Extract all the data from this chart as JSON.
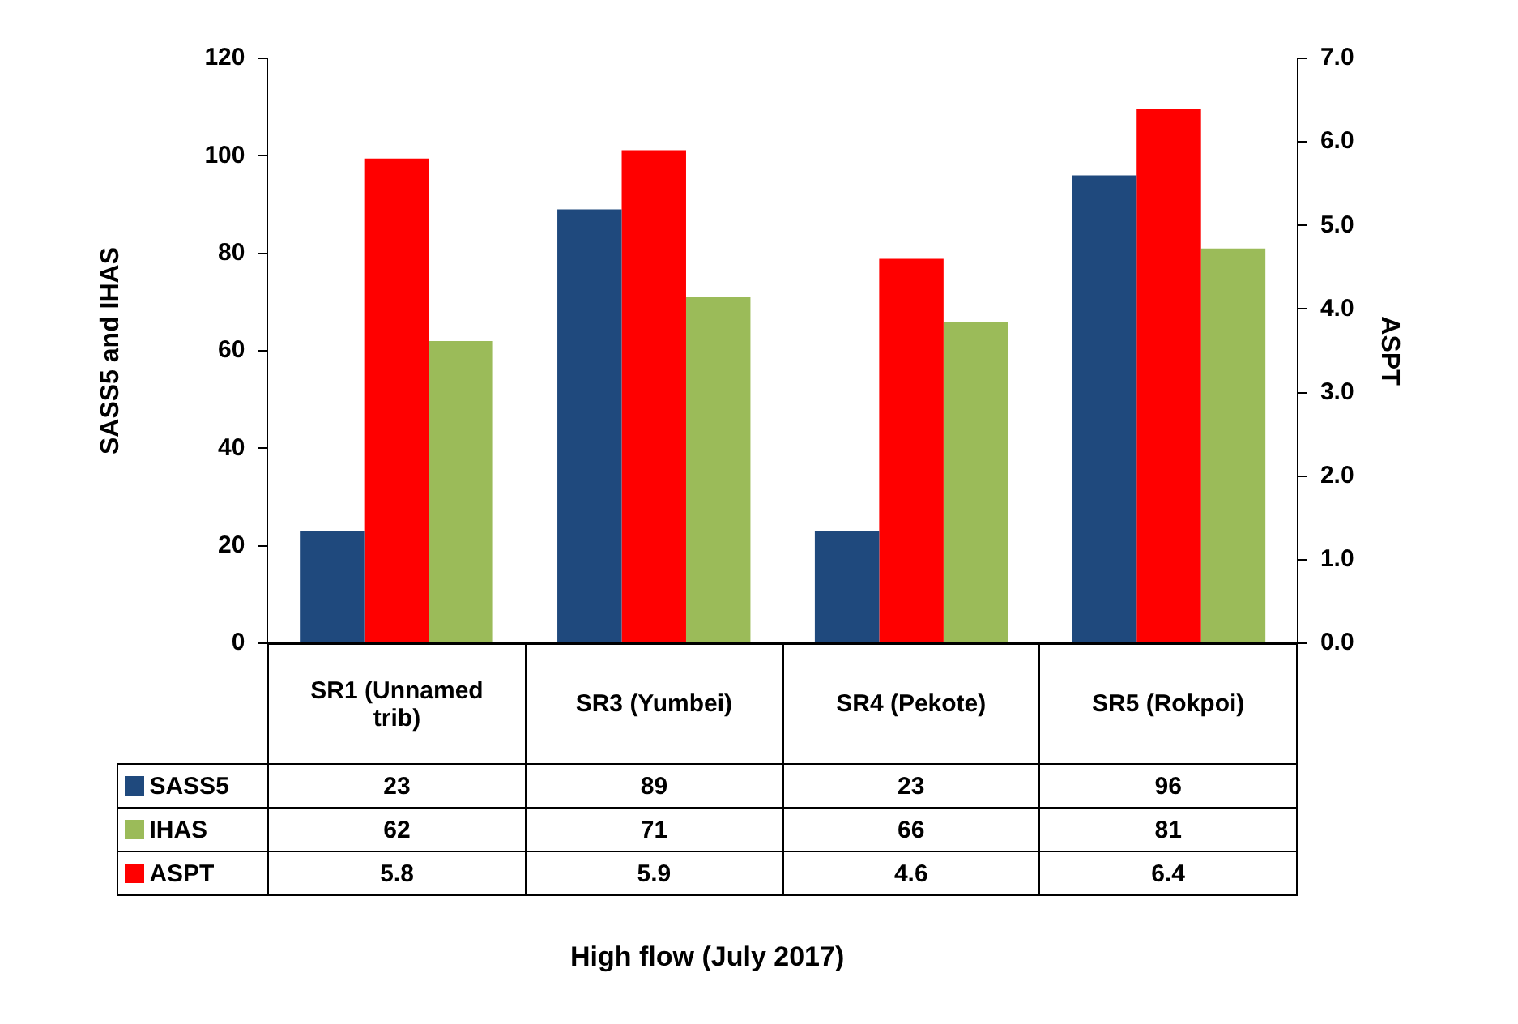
{
  "chart_data": {
    "type": "bar",
    "annotations": [
      "High flow (July 2017)"
    ],
    "ylabel": "SASS5 and IHAS",
    "y2label": "ASPT",
    "categories": [
      "SR1 (Unnamed trib)",
      "SR3 (Yumbei)",
      "SR4 (Pekote)",
      "SR5 (Rokpoi)"
    ],
    "series": [
      {
        "name": "SASS5",
        "color": "#1f497d",
        "values": [
          23,
          89,
          23,
          96
        ]
      },
      {
        "name": "IHAS",
        "color": "#9bbb59",
        "values": [
          62,
          71,
          66,
          81
        ]
      },
      {
        "name": "ASPT",
        "color": "#ff0000",
        "values": [
          5.8,
          5.9,
          4.6,
          6.4
        ],
        "axis": "y2"
      }
    ],
    "ylim": [
      0,
      120
    ],
    "yticks": [
      0,
      20,
      40,
      60,
      80,
      100,
      120
    ],
    "y2lim": [
      0,
      7
    ],
    "y2ticks": [
      {
        "value": 0,
        "label": "0.0"
      },
      {
        "value": 1,
        "label": "1.0"
      },
      {
        "value": 2,
        "label": "2.0"
      },
      {
        "value": 3,
        "label": "3.0"
      },
      {
        "value": 4,
        "label": "4.0"
      },
      {
        "value": 5,
        "label": "5.0"
      },
      {
        "value": 6,
        "label": "6.0"
      },
      {
        "value": 7,
        "label": "7.0"
      }
    ],
    "data_labels": true,
    "legend": "bottom",
    "grid": false
  }
}
